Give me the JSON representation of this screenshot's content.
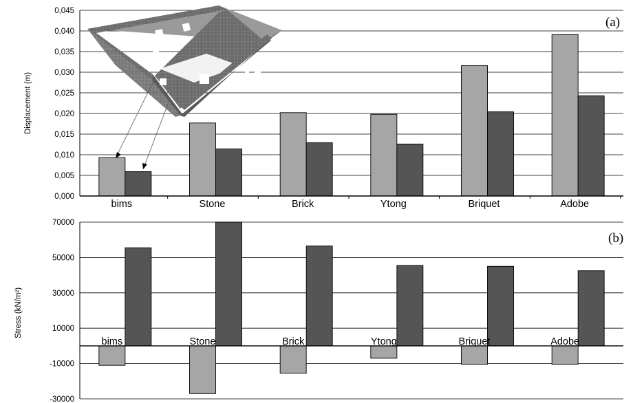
{
  "colors": {
    "light": "#a6a6a6",
    "dark": "#555555",
    "grid": "#000000"
  },
  "chart_data": [
    {
      "type": "bar",
      "panel_label": "(a)",
      "ylabel": "Displacement (m)",
      "categories": [
        "bims",
        "Stone",
        "Brick",
        "Ytong",
        "Briquet",
        "Adobe"
      ],
      "ylim": [
        0,
        0.045
      ],
      "yticks": [
        "0,000",
        "0,005",
        "0,010",
        "0,015",
        "0,020",
        "0,025",
        "0,030",
        "0,035",
        "0,040",
        "0,045"
      ],
      "series": [
        {
          "values": [
            0.0093,
            0.0177,
            0.0202,
            0.0198,
            0.0316,
            0.0391
          ]
        },
        {
          "values": [
            0.0059,
            0.0114,
            0.0129,
            0.0126,
            0.0204,
            0.0243
          ]
        }
      ],
      "inset": "building-model-image"
    },
    {
      "type": "bar",
      "panel_label": "(b)",
      "ylabel": "Stress (kN/m²)",
      "categories": [
        "bims",
        "Stone",
        "Brick",
        "Ytong",
        "Briquet",
        "Adobe"
      ],
      "ylim": [
        -30000,
        70000
      ],
      "yticks": [
        "-30000",
        "-10000",
        "10000",
        "30000",
        "50000",
        "70000"
      ],
      "series": [
        {
          "values": [
            -11000,
            -27000,
            -15500,
            -7000,
            -10500,
            -10500
          ]
        },
        {
          "values": [
            55500,
            70000,
            56500,
            45500,
            45000,
            42500
          ]
        }
      ]
    }
  ]
}
